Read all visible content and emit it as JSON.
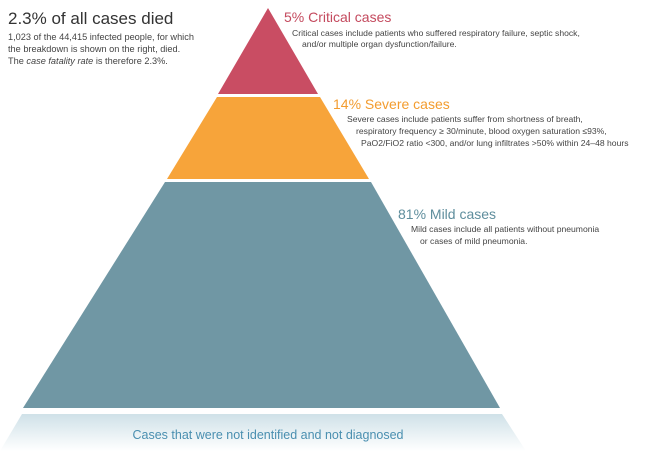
{
  "summary": {
    "title": "2.3% of all cases died",
    "lines": [
      "1,023 of the 44,415 infected people, for which",
      "the breakdown is shown on the right, died."
    ],
    "last_line": {
      "before": "The ",
      "italic": "case fatality rate",
      "after": " is therefore 2.3%."
    }
  },
  "tiers": [
    {
      "heading": "5% Critical cases",
      "description": [
        "Critical cases include patients who suffered respiratory failure, septic shock,",
        "and/or multiple organ dysfunction/failure."
      ]
    },
    {
      "heading": "14% Severe cases",
      "description": [
        "Severe cases include patients suffer from shortness of breath,",
        "respiratory frequency ≥ 30/minute, blood oxygen saturation ≤93%,",
        "PaO2/FiO2 ratio <300, and/or lung infiltrates >50% within 24–48 hours"
      ]
    },
    {
      "heading": "81% Mild cases",
      "description": [
        "Mild cases include all patients without pneumonia",
        "or cases of mild pneumonia."
      ]
    }
  ],
  "base": {
    "label": "Cases that were not identified and not diagnosed"
  }
}
